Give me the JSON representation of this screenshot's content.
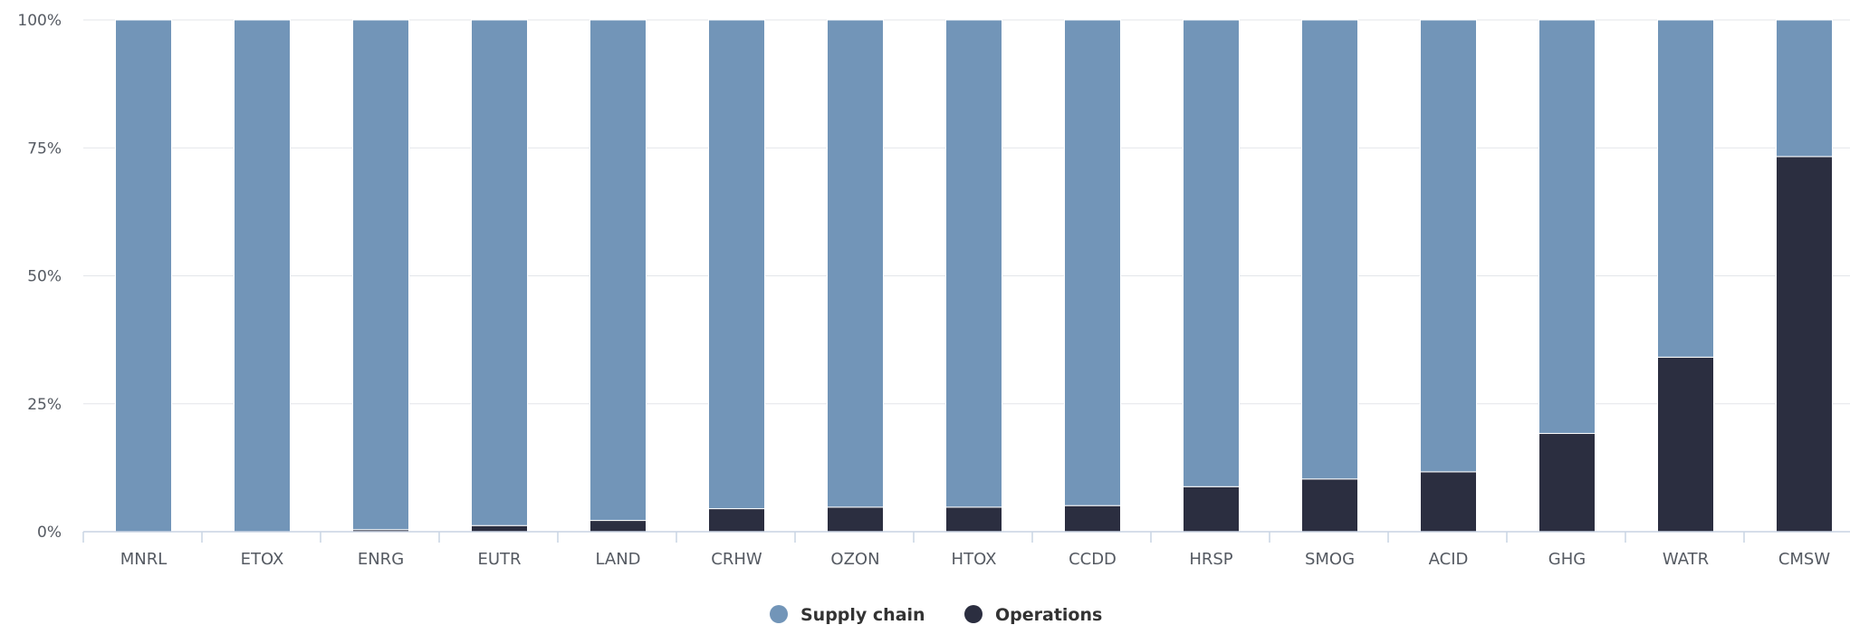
{
  "chart_data": {
    "type": "bar",
    "stacked": true,
    "percent": true,
    "categories": [
      "MNRL",
      "ETOX",
      "ENRG",
      "EUTR",
      "LAND",
      "CRHW",
      "OZON",
      "HTOX",
      "CCDD",
      "HRSP",
      "SMOG",
      "ACID",
      "GHG",
      "WATR",
      "CMSW"
    ],
    "series": [
      {
        "name": "Supply chain",
        "color": "#7295b8",
        "values": [
          100,
          100,
          99.6,
          98.8,
          97.8,
          95.5,
          95.2,
          95.2,
          94.9,
          91.2,
          89.7,
          88.3,
          80.8,
          65.9,
          26.7
        ]
      },
      {
        "name": "Operations",
        "color": "#2b2e40",
        "values": [
          0,
          0,
          0.4,
          1.2,
          2.2,
          4.5,
          4.8,
          4.8,
          5.1,
          8.8,
          10.3,
          11.7,
          19.2,
          34.1,
          73.3
        ]
      }
    ],
    "ylim": [
      0,
      100
    ],
    "yticks": [
      "0%",
      "25%",
      "50%",
      "75%",
      "100%"
    ],
    "grid": true,
    "legend": "bottom-center"
  }
}
